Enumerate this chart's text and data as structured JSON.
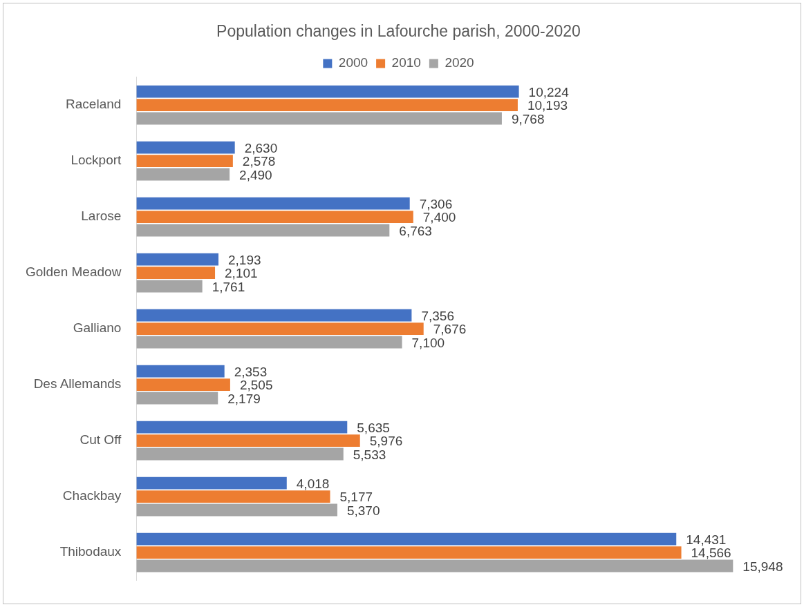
{
  "chart_data": {
    "type": "bar",
    "orientation": "horizontal",
    "title": "Population changes in Lafourche parish, 2000-2020",
    "categories": [
      "Raceland",
      "Lockport",
      "Larose",
      "Golden Meadow",
      "Galliano",
      "Des Allemands",
      "Cut Off",
      "Chackbay",
      "Thibodaux"
    ],
    "series": [
      {
        "name": "2000",
        "color": "#4472c4",
        "values": [
          10224,
          2630,
          7306,
          2193,
          7356,
          2353,
          5635,
          4018,
          14431
        ],
        "value_labels": [
          "10,224",
          "2,630",
          "7,306",
          "2,193",
          "7,356",
          "2,353",
          "5,635",
          "4,018",
          "14,431"
        ]
      },
      {
        "name": "2010",
        "color": "#ed7d31",
        "values": [
          10193,
          2578,
          7400,
          2101,
          7676,
          2505,
          5976,
          5177,
          14566
        ],
        "value_labels": [
          "10,193",
          "2,578",
          "7,400",
          "2,101",
          "7,676",
          "2,505",
          "5,976",
          "5,177",
          "14,566"
        ]
      },
      {
        "name": "2020",
        "color": "#a5a5a5",
        "values": [
          9768,
          2490,
          6763,
          1761,
          7100,
          2179,
          5533,
          5370,
          15948
        ],
        "value_labels": [
          "9,768",
          "2,490",
          "6,763",
          "1,761",
          "7,100",
          "2,179",
          "5,533",
          "5,370",
          "15,948"
        ]
      }
    ],
    "legend": "top"
  }
}
